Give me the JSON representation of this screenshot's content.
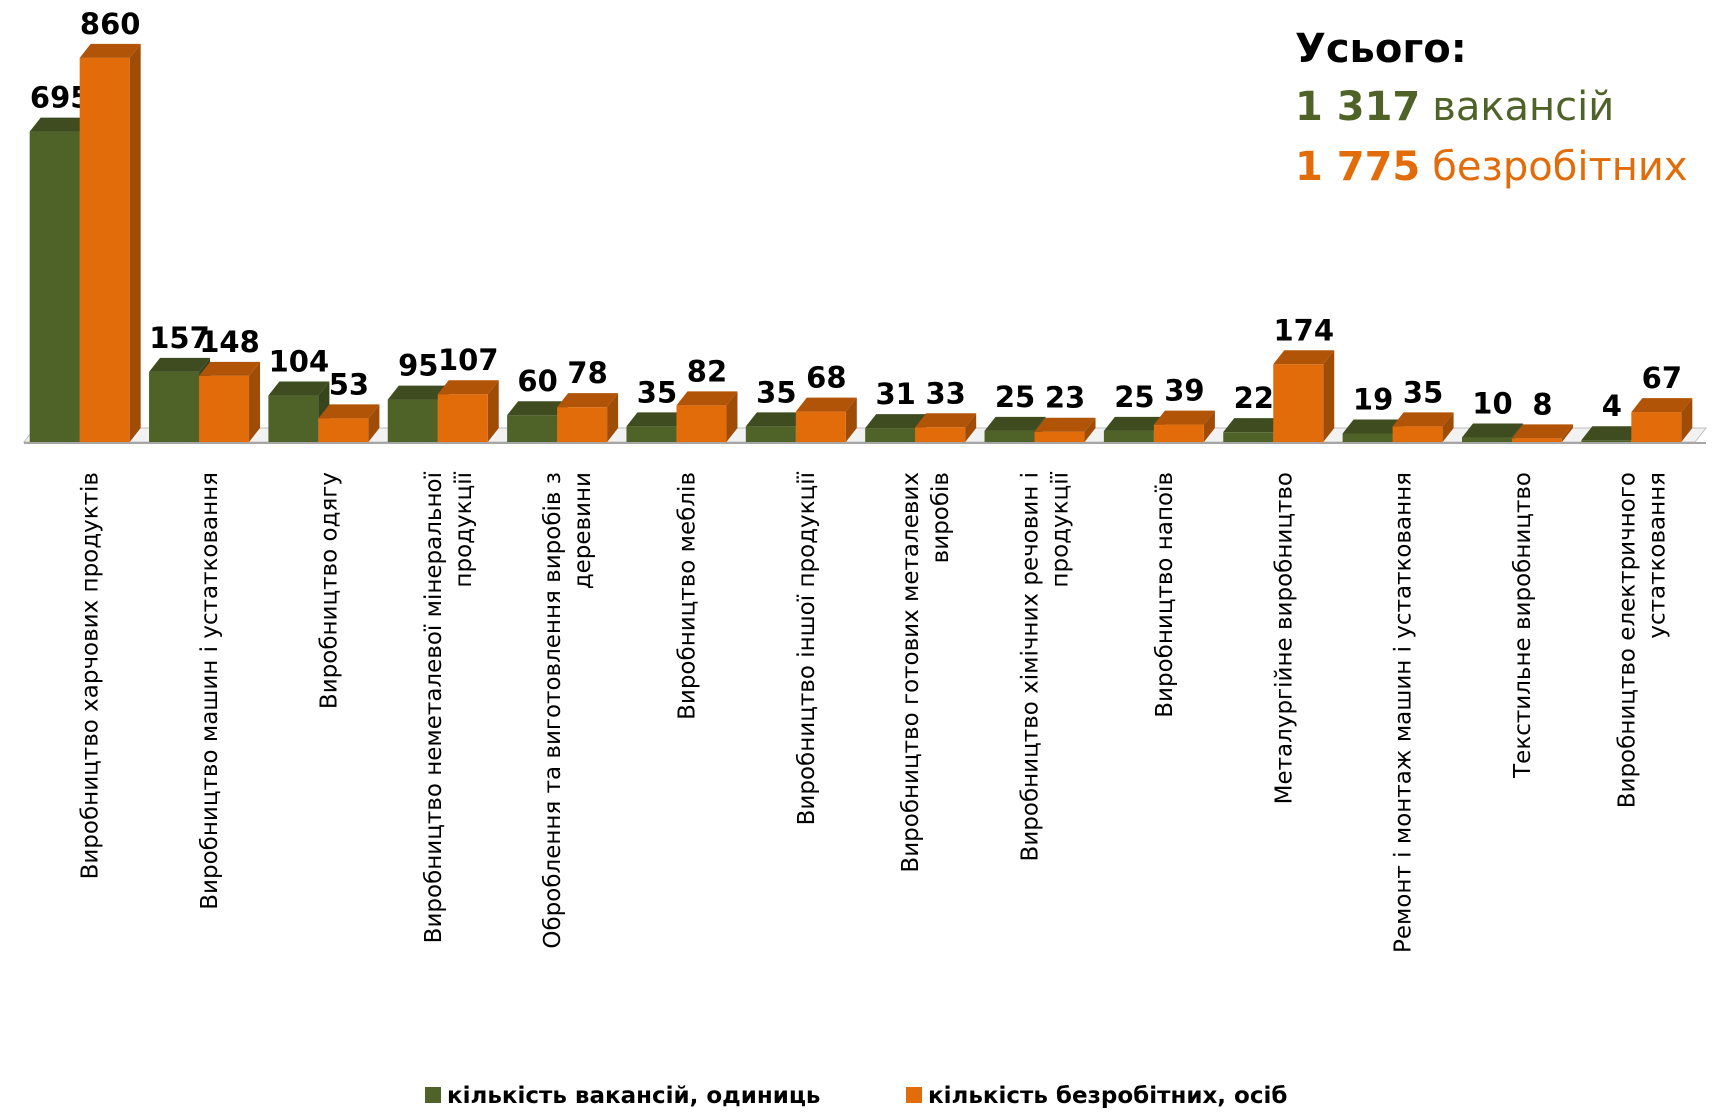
{
  "chart_data": {
    "type": "bar3d",
    "categories": [
      "Виробництво харчових продуктів",
      "Виробництво машин і устатковання",
      "Виробництво одягу",
      "Виробництво неметалевої мінеральної\nпродукції",
      "Оброблення та виготовлення виробів з\nдеревини",
      "Виробництво меблів",
      "Виробництво іншої продукції",
      "Виробництво готових металевих\nвиробів",
      "Виробництво хімічних речовин і\nпродукції",
      "Виробництво напоїв",
      "Металургійне виробництво",
      "Ремонт і монтаж машин і устатковання",
      "Текстильне виробництво",
      "Виробництво електричного\nустатковання"
    ],
    "series": [
      {
        "name": "кількість вакансій, одиниць",
        "color": "#4f6228",
        "values": [
          695,
          157,
          104,
          95,
          60,
          35,
          35,
          31,
          25,
          25,
          22,
          19,
          10,
          4
        ]
      },
      {
        "name": "кількість безробітних, осіб",
        "color": "#e36c0a",
        "values": [
          860,
          148,
          53,
          107,
          78,
          82,
          68,
          33,
          23,
          39,
          174,
          35,
          8,
          67
        ]
      }
    ],
    "ylim": [
      0,
      900
    ],
    "legend": "bottom",
    "summary": {
      "title": "Усього:",
      "lines": [
        {
          "number": "1 317",
          "text": "вакансій",
          "series": 0
        },
        {
          "number": "1 775",
          "text": "безробітних",
          "series": 1
        }
      ]
    }
  }
}
